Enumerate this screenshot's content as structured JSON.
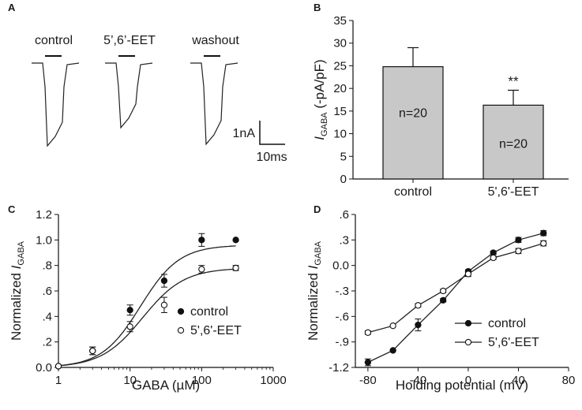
{
  "panels": {
    "A": {
      "letter": "A",
      "traces": [
        {
          "label": "control",
          "peak": 1.0
        },
        {
          "label": "5’,6’-EET",
          "peak": 0.78
        },
        {
          "label": "washout",
          "peak": 0.98
        }
      ],
      "scale_current": "1nA",
      "scale_time": "10ms"
    },
    "B": {
      "letter": "B"
    },
    "C": {
      "letter": "C"
    },
    "D": {
      "letter": "D"
    }
  },
  "chart_data": [
    {
      "type": "bar",
      "title": "",
      "xlabel": "",
      "ylabel_main": "I",
      "ylabel_sub": "GABA",
      "ylabel_rest": " (-pA/pF)",
      "categories": [
        "control",
        "5',6'-EET"
      ],
      "values": [
        24.8,
        16.3
      ],
      "errors": [
        4.2,
        3.3
      ],
      "bar_labels": [
        "n=20",
        "n=20"
      ],
      "significance": [
        "",
        "**"
      ],
      "ylim": [
        0,
        35
      ],
      "yticks": [
        0,
        5,
        10,
        15,
        20,
        25,
        30,
        35
      ],
      "bar_color": "#c8c8c8"
    },
    {
      "type": "scatter",
      "xscale": "log",
      "xlabel_prefix": "GABA (",
      "xlabel_unit": "µM",
      "xlabel_suffix": ")",
      "ylabel_main": "Normalized I",
      "ylabel_sub": "GABA",
      "xlim": [
        1,
        1000
      ],
      "ylim": [
        0,
        1.2
      ],
      "xticks": [
        1,
        10,
        100,
        1000
      ],
      "xtick_labels": [
        "1",
        "10",
        "100",
        "1000"
      ],
      "yticks": [
        0,
        0.2,
        0.4,
        0.6,
        0.8,
        1.0,
        1.2
      ],
      "ytick_labels": [
        "0.0",
        ".2",
        ".4",
        ".6",
        ".8",
        "1.0",
        "1.2"
      ],
      "series": [
        {
          "name": "control",
          "marker": "filled",
          "x": [
            1,
            3,
            10,
            30,
            100,
            300
          ],
          "y": [
            0.01,
            0.13,
            0.45,
            0.68,
            1.0,
            1.0
          ],
          "err": [
            0.0,
            0.03,
            0.04,
            0.05,
            0.05,
            0.0
          ],
          "fit": {
            "top": 0.96,
            "ec50": 14,
            "hill": 1.6,
            "bottom": 0.0
          }
        },
        {
          "name": "5',6'-EET",
          "marker": "open",
          "x": [
            1,
            3,
            10,
            30,
            100,
            300
          ],
          "y": [
            0.01,
            0.13,
            0.32,
            0.49,
            0.77,
            0.78
          ],
          "err": [
            0.0,
            0.03,
            0.04,
            0.06,
            0.03,
            0.02
          ],
          "fit": {
            "top": 0.78,
            "ec50": 15,
            "hill": 1.5,
            "bottom": 0.0
          }
        }
      ],
      "legend_position": "lower-right"
    },
    {
      "type": "line",
      "xlabel": "Holding potential (mV)",
      "ylabel_main": "Normalized I",
      "ylabel_sub": "GABA",
      "xlim": [
        -90,
        80
      ],
      "ylim": [
        -1.2,
        0.6
      ],
      "xticks": [
        -80,
        -40,
        0,
        40,
        80
      ],
      "xtick_labels": [
        "-80",
        "-40",
        "0",
        "40",
        "80"
      ],
      "yticks": [
        -1.2,
        -0.9,
        -0.6,
        -0.3,
        0.0,
        0.3,
        0.6
      ],
      "ytick_labels": [
        "-1.2",
        "-.9",
        "-.6",
        "-.3",
        "0.0",
        ".3",
        ".6"
      ],
      "series": [
        {
          "name": "control",
          "marker": "filled",
          "x": [
            -80,
            -60,
            -40,
            -20,
            0,
            20,
            40,
            60
          ],
          "y": [
            -1.14,
            -1.0,
            -0.7,
            -0.41,
            -0.07,
            0.15,
            0.3,
            0.38
          ],
          "err": [
            0.04,
            0.01,
            0.07,
            0.02,
            0.02,
            0.02,
            0.03,
            0.03
          ]
        },
        {
          "name": "5',6'-EET",
          "marker": "open",
          "x": [
            -80,
            -60,
            -40,
            -20,
            0,
            20,
            40,
            60
          ],
          "y": [
            -0.79,
            -0.71,
            -0.47,
            -0.3,
            -0.1,
            0.09,
            0.17,
            0.26
          ],
          "err": [
            0.02,
            0.01,
            0.02,
            0.02,
            0.03,
            0.02,
            0.03,
            0.03
          ]
        }
      ],
      "legend_position": "lower-right"
    }
  ]
}
